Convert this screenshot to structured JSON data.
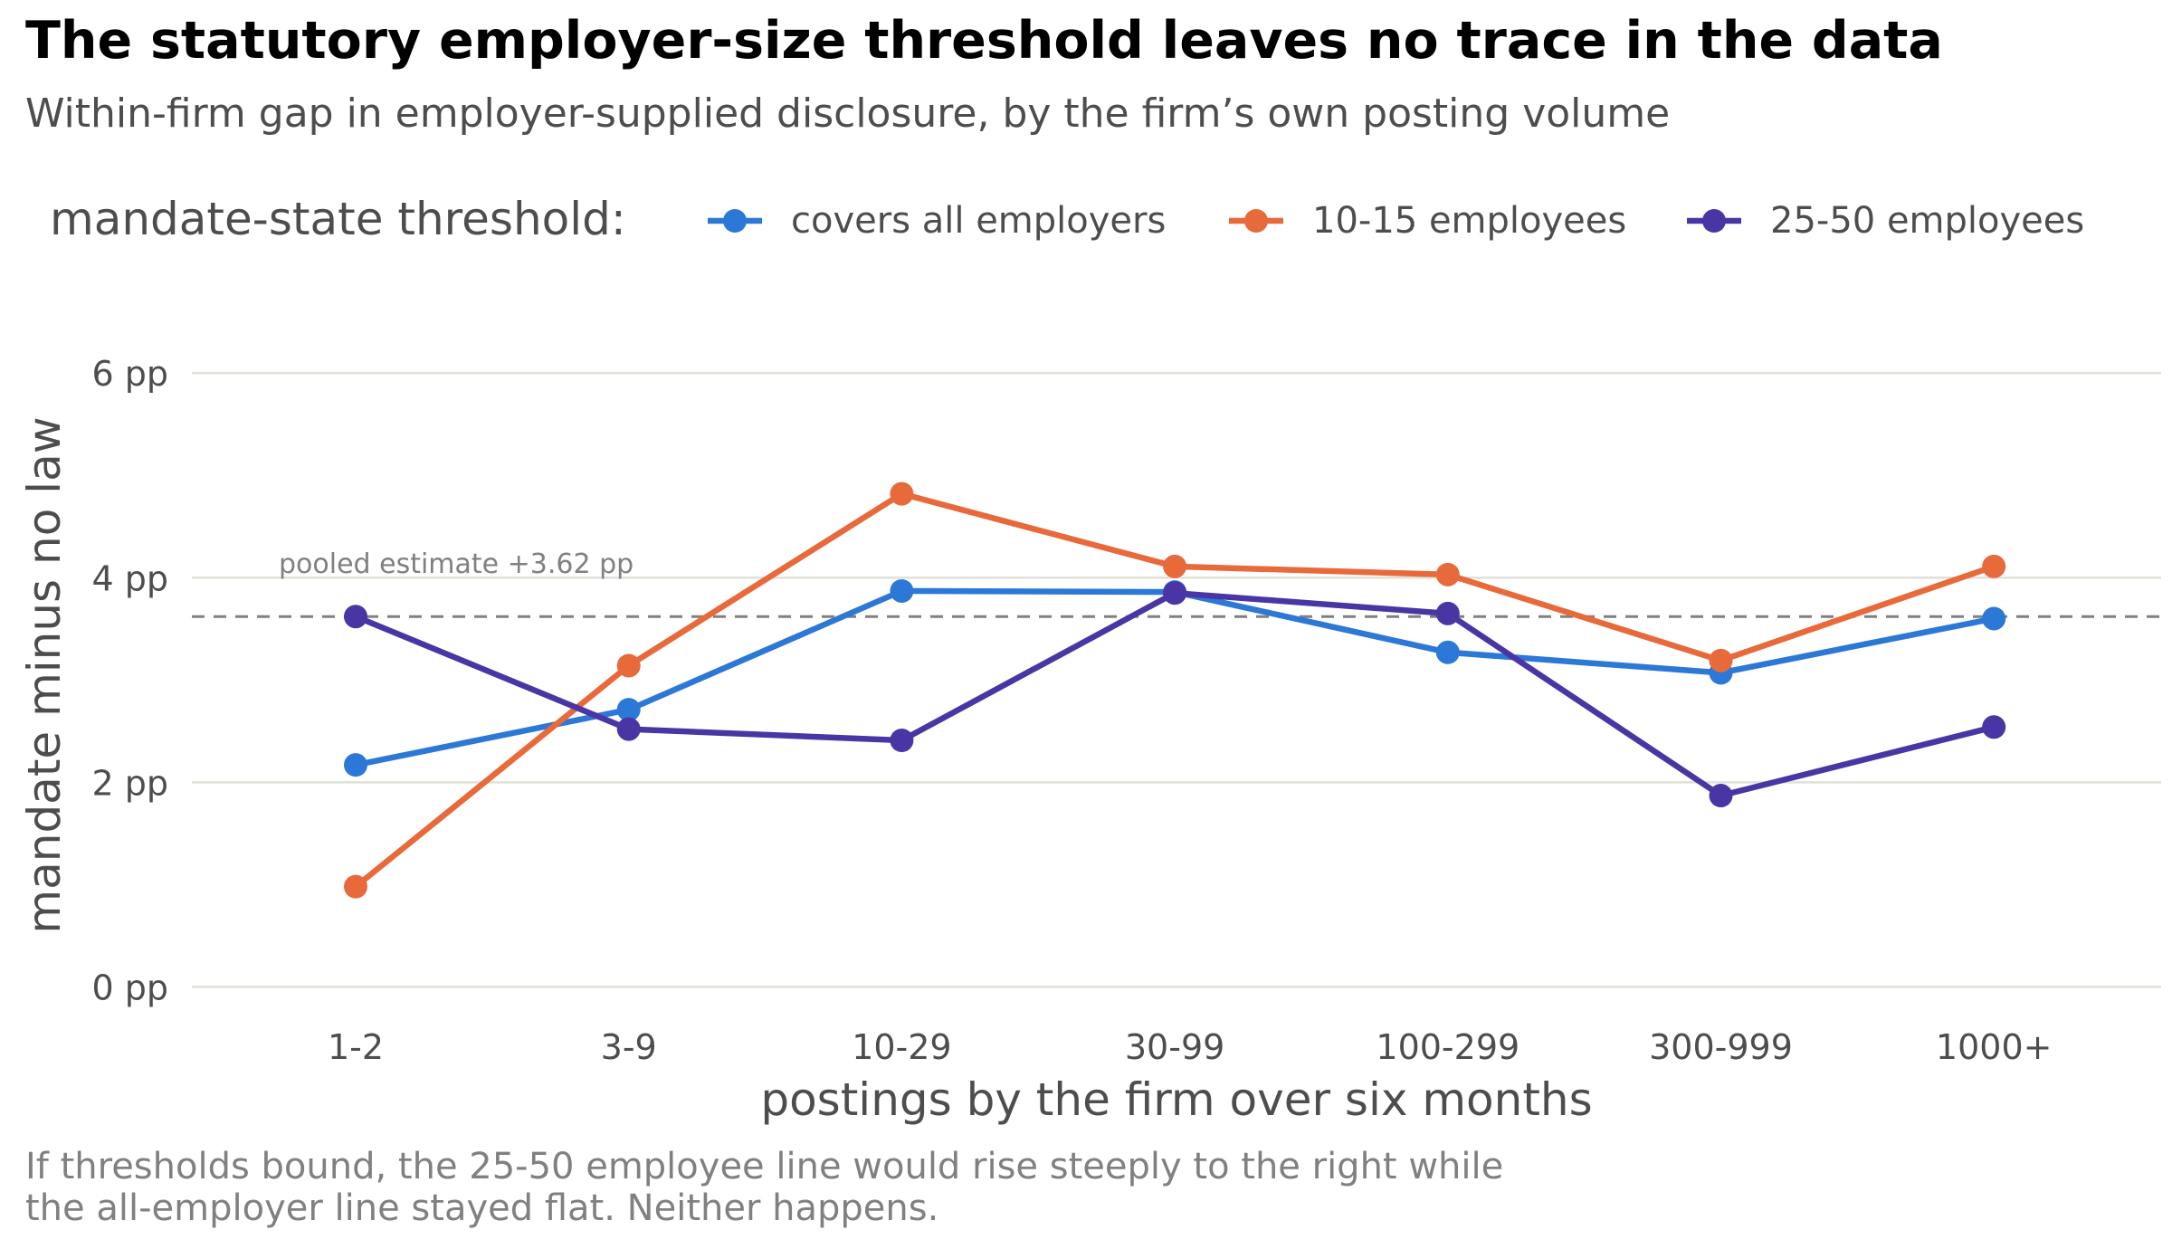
{
  "chart_data": {
    "type": "line",
    "title": "The statutory employer-size threshold leaves no trace in the data",
    "subtitle": "Within-firm gap in employer-supplied disclosure, by the firm’s own posting volume",
    "legend_title": "mandate-state threshold:",
    "legend_position": "top",
    "categories": [
      "1-2",
      "3-9",
      "10-29",
      "30-99",
      "100-299",
      "300-999",
      "1000+"
    ],
    "series": [
      {
        "name": "covers all employers",
        "color": "#2b78d6",
        "values": [
          2.17,
          2.71,
          3.87,
          3.86,
          3.27,
          3.07,
          3.6
        ]
      },
      {
        "name": "10-15 employees",
        "color": "#e8693a",
        "values": [
          0.98,
          3.14,
          4.82,
          4.11,
          4.03,
          3.19,
          4.11
        ]
      },
      {
        "name": "25-50 employees",
        "color": "#4a35a4",
        "values": [
          3.62,
          2.52,
          2.41,
          3.85,
          3.65,
          1.87,
          2.54
        ]
      }
    ],
    "reference_line": {
      "value": 3.62,
      "label": "pooled estimate  +3.62 pp",
      "style": "dashed",
      "color": "#808080"
    },
    "ylim": [
      -0.35,
      6.55
    ],
    "yticks": [
      0,
      2,
      4,
      6
    ],
    "ytick_labels": [
      "0 pp",
      "2 pp",
      "4 pp",
      "6 pp"
    ],
    "xlabel": "postings by the firm over six months",
    "ylabel": "mandate minus no law",
    "grid": "horizontal",
    "grid_color": "#e0e0d8",
    "caption": [
      "If thresholds bound, the 25-50 employee line would rise steeply to the right while",
      "the all-employer line stayed flat. Neither happens."
    ]
  }
}
